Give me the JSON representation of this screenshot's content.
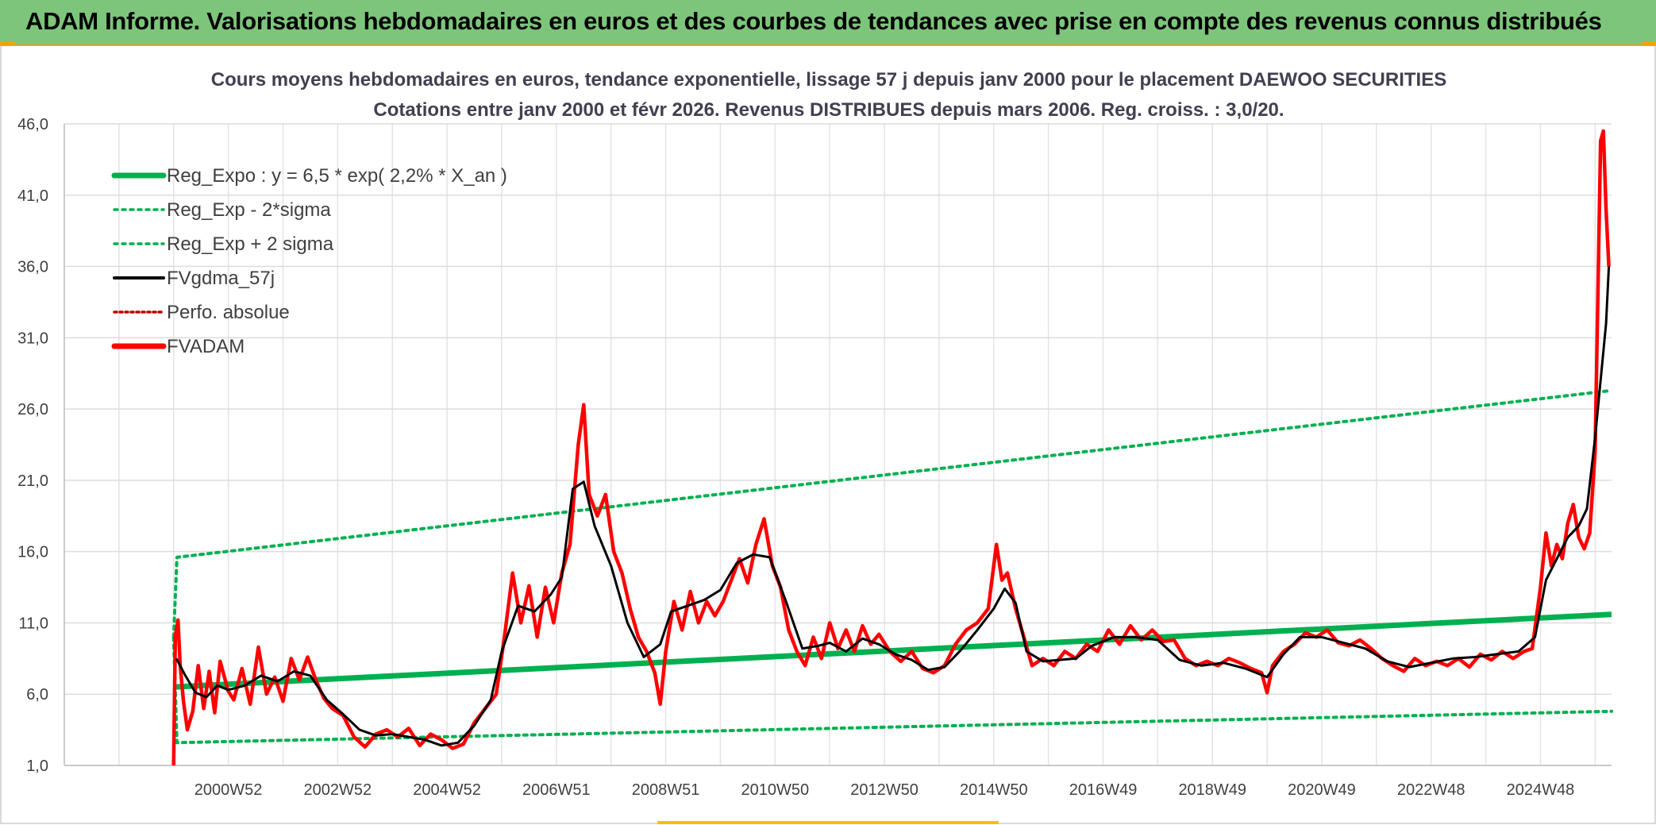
{
  "banner": {
    "title": "ADAM Informe. Valorisations hebdomadaires en euros et des courbes de tendances avec prise en compte des revenus connus distribués"
  },
  "chart_data": {
    "type": "line",
    "title": "Cours moyens hebdomadaires en euros, tendance exponentielle, lissage 57 j depuis janv 2000 pour le placement DAEWOO SECURITIES",
    "subtitle": "Cotations entre janv 2000 et févr 2026. Revenus DISTRIBUES depuis mars 2006. Reg. croiss. : 3,0/20.",
    "xlabel": "",
    "ylabel": "",
    "ylim": [
      1.0,
      46.0
    ],
    "yticks": [
      "1,0",
      "6,0",
      "11,0",
      "16,0",
      "21,0",
      "26,0",
      "31,0",
      "36,0",
      "41,0",
      "46,0"
    ],
    "xlim": [
      1998.0,
      2026.3
    ],
    "xticks": [
      {
        "label": "2000W52",
        "x": 2001.0
      },
      {
        "label": "2002W52",
        "x": 2003.0
      },
      {
        "label": "2004W52",
        "x": 2005.0
      },
      {
        "label": "2006W51",
        "x": 2007.0
      },
      {
        "label": "2008W51",
        "x": 2009.0
      },
      {
        "label": "2010W50",
        "x": 2011.0
      },
      {
        "label": "2012W50",
        "x": 2013.0
      },
      {
        "label": "2014W50",
        "x": 2015.0
      },
      {
        "label": "2016W49",
        "x": 2017.0
      },
      {
        "label": "2018W49",
        "x": 2019.0
      },
      {
        "label": "2020W49",
        "x": 2021.0
      },
      {
        "label": "2022W48",
        "x": 2023.0
      },
      {
        "label": "2024W48",
        "x": 2025.0
      }
    ],
    "grid": true,
    "legend_position": "top-left",
    "series": [
      {
        "name": "Reg_Expo : y = 6,5 * exp( 2,2% *  X_an )",
        "color": "#00b050",
        "style": "solid-thick",
        "x": [
          2000.0,
          2026.3
        ],
        "y": [
          6.5,
          11.6
        ]
      },
      {
        "name": "Reg_Exp - 2*sigma",
        "color": "#00b050",
        "style": "dotted",
        "x": [
          2000.0,
          2000.06,
          2026.3
        ],
        "y": [
          10.0,
          2.6,
          4.8
        ]
      },
      {
        "name": "Reg_Exp + 2 sigma",
        "color": "#00b050",
        "style": "dotted",
        "x": [
          2000.0,
          2000.06,
          2026.3
        ],
        "y": [
          10.0,
          15.6,
          27.3
        ]
      },
      {
        "name": "FVgdma_57j",
        "color": "#000000",
        "style": "solid",
        "x": [
          2000.05,
          2000.2,
          2000.4,
          2000.6,
          2000.8,
          2001.0,
          2001.3,
          2001.6,
          2001.9,
          2002.2,
          2002.5,
          2002.8,
          2003.1,
          2003.4,
          2003.7,
          2004.0,
          2004.3,
          2004.6,
          2004.9,
          2005.2,
          2005.5,
          2005.8,
          2006.0,
          2006.3,
          2006.6,
          2006.9,
          2007.1,
          2007.3,
          2007.5,
          2007.7,
          2008.0,
          2008.3,
          2008.6,
          2008.9,
          2009.1,
          2009.4,
          2009.7,
          2010.0,
          2010.3,
          2010.6,
          2010.9,
          2011.2,
          2011.5,
          2011.8,
          2012.0,
          2012.3,
          2012.6,
          2012.9,
          2013.2,
          2013.5,
          2013.8,
          2014.1,
          2014.4,
          2014.7,
          2015.0,
          2015.2,
          2015.4,
          2015.6,
          2015.9,
          2016.2,
          2016.5,
          2016.8,
          2017.2,
          2017.6,
          2018.0,
          2018.4,
          2018.8,
          2019.2,
          2019.6,
          2020.0,
          2020.3,
          2020.6,
          2021.0,
          2021.4,
          2021.8,
          2022.2,
          2022.6,
          2023.0,
          2023.4,
          2023.8,
          2024.2,
          2024.6,
          2024.9,
          2025.1,
          2025.3,
          2025.5,
          2025.7,
          2025.85,
          2026.0,
          2026.1,
          2026.2,
          2026.25
        ],
        "y": [
          8.5,
          7.4,
          6.1,
          5.8,
          6.6,
          6.3,
          6.6,
          7.3,
          6.9,
          7.6,
          7.3,
          5.6,
          4.6,
          3.5,
          3.1,
          3.2,
          3.0,
          2.8,
          2.4,
          2.6,
          3.8,
          5.6,
          9.0,
          12.2,
          11.8,
          13.0,
          14.2,
          20.4,
          20.9,
          17.8,
          15.0,
          11.0,
          8.6,
          9.5,
          11.8,
          12.2,
          12.6,
          13.3,
          15.2,
          15.8,
          15.6,
          12.5,
          9.2,
          9.4,
          9.6,
          9.0,
          9.9,
          9.5,
          8.8,
          8.4,
          7.7,
          7.9,
          9.1,
          10.5,
          12.0,
          13.4,
          12.4,
          9.0,
          8.3,
          8.4,
          8.5,
          9.4,
          10.0,
          10.0,
          9.8,
          8.4,
          8.0,
          8.2,
          7.8,
          7.2,
          8.8,
          10.0,
          10.0,
          9.6,
          9.2,
          8.3,
          7.9,
          8.2,
          8.5,
          8.6,
          8.8,
          9.0,
          10.0,
          14.0,
          15.5,
          17.0,
          17.8,
          19.0,
          24.0,
          28.0,
          32.0,
          36.0
        ]
      },
      {
        "name": "Perfo. absolue",
        "color": "#c00000",
        "style": "dotted",
        "x": [],
        "y": []
      },
      {
        "name": "FVADAM",
        "color": "#ff0000",
        "style": "solid-thick",
        "x": [
          2000.0,
          2000.03,
          2000.08,
          2000.12,
          2000.18,
          2000.25,
          2000.35,
          2000.45,
          2000.55,
          2000.65,
          2000.75,
          2000.85,
          2001.0,
          2001.1,
          2001.25,
          2001.4,
          2001.55,
          2001.7,
          2001.85,
          2002.0,
          2002.15,
          2002.3,
          2002.45,
          2002.6,
          2002.75,
          2002.9,
          2003.1,
          2003.3,
          2003.5,
          2003.7,
          2003.9,
          2004.1,
          2004.3,
          2004.5,
          2004.7,
          2004.9,
          2005.1,
          2005.3,
          2005.5,
          2005.7,
          2005.9,
          2006.05,
          2006.2,
          2006.35,
          2006.5,
          2006.65,
          2006.8,
          2006.95,
          2007.1,
          2007.25,
          2007.4,
          2007.5,
          2007.6,
          2007.75,
          2007.9,
          2008.05,
          2008.2,
          2008.35,
          2008.5,
          2008.65,
          2008.8,
          2008.9,
          2009.0,
          2009.15,
          2009.3,
          2009.45,
          2009.6,
          2009.75,
          2009.9,
          2010.05,
          2010.2,
          2010.35,
          2010.5,
          2010.65,
          2010.8,
          2010.95,
          2011.1,
          2011.25,
          2011.4,
          2011.55,
          2011.7,
          2011.85,
          2012.0,
          2012.15,
          2012.3,
          2012.45,
          2012.6,
          2012.75,
          2012.9,
          2013.1,
          2013.3,
          2013.5,
          2013.7,
          2013.9,
          2014.1,
          2014.3,
          2014.5,
          2014.7,
          2014.9,
          2015.05,
          2015.15,
          2015.25,
          2015.4,
          2015.55,
          2015.7,
          2015.9,
          2016.1,
          2016.3,
          2016.5,
          2016.7,
          2016.9,
          2017.1,
          2017.3,
          2017.5,
          2017.7,
          2017.9,
          2018.1,
          2018.3,
          2018.5,
          2018.7,
          2018.9,
          2019.1,
          2019.3,
          2019.5,
          2019.7,
          2019.9,
          2020.0,
          2020.1,
          2020.3,
          2020.5,
          2020.7,
          2020.9,
          2021.1,
          2021.3,
          2021.5,
          2021.7,
          2021.9,
          2022.1,
          2022.3,
          2022.5,
          2022.7,
          2022.9,
          2023.1,
          2023.3,
          2023.5,
          2023.7,
          2023.9,
          2024.1,
          2024.3,
          2024.5,
          2024.7,
          2024.85,
          2025.0,
          2025.1,
          2025.2,
          2025.3,
          2025.4,
          2025.5,
          2025.6,
          2025.7,
          2025.8,
          2025.9,
          2026.0,
          2026.05,
          2026.1,
          2026.15,
          2026.2,
          2026.25
        ],
        "y": [
          1.0,
          10.0,
          11.2,
          8.0,
          5.5,
          3.5,
          4.8,
          8.0,
          5.0,
          7.6,
          4.7,
          8.3,
          6.2,
          5.6,
          7.8,
          5.3,
          9.3,
          6.0,
          7.2,
          5.5,
          8.5,
          7.0,
          8.6,
          7.0,
          5.7,
          5.0,
          4.5,
          3.0,
          2.3,
          3.2,
          3.5,
          3.0,
          3.6,
          2.4,
          3.2,
          2.8,
          2.2,
          2.5,
          4.0,
          5.0,
          6.0,
          10.0,
          14.5,
          11.0,
          13.6,
          10.0,
          13.5,
          11.0,
          14.5,
          16.5,
          23.5,
          26.3,
          20.0,
          18.5,
          20.0,
          16.0,
          14.5,
          12.0,
          10.0,
          9.0,
          7.5,
          5.3,
          9.0,
          12.5,
          10.5,
          13.2,
          11.0,
          12.5,
          11.5,
          12.5,
          14.0,
          15.5,
          13.8,
          16.5,
          18.3,
          15.0,
          13.5,
          10.5,
          9.0,
          8.0,
          10.0,
          8.5,
          11.0,
          9.2,
          10.5,
          9.0,
          10.8,
          9.5,
          10.2,
          9.0,
          8.3,
          9.0,
          7.8,
          7.5,
          8.0,
          9.5,
          10.5,
          11.0,
          12.0,
          16.5,
          14.0,
          14.5,
          12.0,
          10.0,
          8.0,
          8.5,
          8.0,
          9.0,
          8.5,
          9.5,
          9.0,
          10.5,
          9.5,
          10.8,
          9.8,
          10.5,
          9.7,
          9.8,
          8.5,
          8.0,
          8.3,
          8.0,
          8.5,
          8.2,
          7.8,
          7.5,
          6.1,
          8.0,
          9.0,
          9.5,
          10.3,
          10.0,
          10.5,
          9.6,
          9.4,
          9.8,
          9.2,
          8.5,
          8.0,
          7.6,
          8.5,
          8.0,
          8.3,
          8.0,
          8.5,
          7.9,
          8.8,
          8.4,
          9.0,
          8.5,
          9.0,
          9.2,
          13.5,
          17.3,
          15.0,
          16.5,
          15.5,
          18.0,
          19.3,
          17.0,
          16.2,
          17.3,
          23.0,
          34.0,
          44.8,
          45.5,
          40.0,
          36.0
        ]
      }
    ]
  }
}
